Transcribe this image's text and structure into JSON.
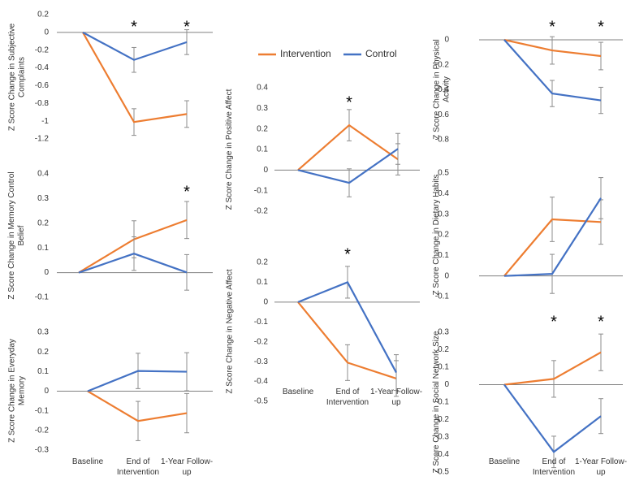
{
  "legend": [
    {
      "name": "Intervention",
      "color": "#ed7d31"
    },
    {
      "name": "Control",
      "color": "#4472c4"
    }
  ],
  "chart_data": [
    {
      "type": "line",
      "ylabel": "Z Score Change in Subjective Complaints",
      "categories": [
        null,
        null,
        null
      ],
      "series": [
        {
          "color": "#ed7d31",
          "values": [
            0,
            -1.01,
            -0.92
          ],
          "errors": [
            null,
            0.15,
            0.15
          ]
        },
        {
          "color": "#4472c4",
          "values": [
            0,
            -0.31,
            -0.11
          ],
          "errors": [
            null,
            0.14,
            0.14
          ]
        }
      ],
      "significant": [
        false,
        true,
        true
      ],
      "marker": "*",
      "ylim": [
        -1.2,
        0.2
      ],
      "yticks": [
        0.2,
        0,
        -0.2,
        -0.4,
        -0.6,
        -0.8,
        -1,
        -1.2
      ]
    },
    {
      "type": "line",
      "ylabel": "Z Score Change in Memory Control Belief",
      "categories": [
        null,
        null,
        null
      ],
      "series": [
        {
          "color": "#ed7d31",
          "values": [
            0,
            0.135,
            0.213
          ],
          "errors": [
            null,
            0.075,
            0.075
          ]
        },
        {
          "color": "#4472c4",
          "values": [
            0,
            0.077,
            0.001
          ],
          "errors": [
            null,
            0.068,
            0.072
          ]
        }
      ],
      "significant": [
        false,
        false,
        true
      ],
      "marker": "*",
      "ylim": [
        -0.1,
        0.4
      ],
      "yticks": [
        0.4,
        0.3,
        0.2,
        0.1,
        0,
        -0.1
      ]
    },
    {
      "type": "line",
      "ylabel": "Z Score Change in Everyday Memory",
      "categories": [
        "Baseline",
        "End of Intervention",
        "1-Year Follow-up"
      ],
      "series": [
        {
          "color": "#ed7d31",
          "values": [
            0,
            -0.152,
            -0.112
          ],
          "errors": [
            null,
            0.1,
            0.1
          ]
        },
        {
          "color": "#4472c4",
          "values": [
            0,
            0.103,
            0.099
          ],
          "errors": [
            null,
            0.09,
            0.097
          ]
        }
      ],
      "significant": [
        false,
        false,
        false
      ],
      "marker": "*",
      "ylim": [
        -0.3,
        0.3
      ],
      "yticks": [
        0.3,
        0.2,
        0.1,
        0,
        -0.1,
        -0.2,
        -0.3
      ]
    },
    {
      "type": "line",
      "ylabel": "Z Score Change in Positive Affect",
      "categories": [
        null,
        null,
        null
      ],
      "series": [
        {
          "color": "#ed7d31",
          "values": [
            0,
            0.218,
            0.052
          ],
          "errors": [
            null,
            0.076,
            0.076
          ]
        },
        {
          "color": "#4472c4",
          "values": [
            0,
            -0.062,
            0.103
          ],
          "errors": [
            null,
            0.068,
            0.075
          ]
        }
      ],
      "significant": [
        false,
        true,
        false
      ],
      "marker": "*",
      "ylim": [
        -0.2,
        0.4
      ],
      "yticks": [
        0.4,
        0.3,
        0.2,
        0.1,
        0,
        -0.1,
        -0.2
      ]
    },
    {
      "type": "line",
      "ylabel": "Z Score Change in Negative Affect",
      "categories": [
        "Baseline",
        "End of Intervention",
        "1-Year Follow-up"
      ],
      "series": [
        {
          "color": "#ed7d31",
          "values": [
            0,
            -0.305,
            -0.385
          ],
          "errors": [
            null,
            0.09,
            0.09
          ]
        },
        {
          "color": "#4472c4",
          "values": [
            0,
            0.1,
            -0.355
          ],
          "errors": [
            null,
            0.08,
            0.09
          ]
        }
      ],
      "significant": [
        false,
        true,
        false
      ],
      "marker": "*",
      "ylim": [
        -0.5,
        0.2
      ],
      "yticks": [
        0.2,
        0.1,
        0,
        -0.1,
        -0.2,
        -0.3,
        -0.4,
        -0.5
      ]
    },
    {
      "type": "line",
      "ylabel": "Z Score Change in Physical Activity",
      "categories": [
        null,
        null,
        null
      ],
      "series": [
        {
          "color": "#ed7d31",
          "values": [
            0,
            -0.085,
            -0.13
          ],
          "errors": [
            null,
            0.11,
            0.11
          ]
        },
        {
          "color": "#4472c4",
          "values": [
            0,
            -0.43,
            -0.485
          ],
          "errors": [
            null,
            0.105,
            0.105
          ]
        }
      ],
      "significant": [
        false,
        true,
        true
      ],
      "marker": "*",
      "ylim": [
        -0.8,
        0
      ],
      "yticks": [
        0,
        -0.2,
        -0.4,
        -0.6,
        -0.8
      ]
    },
    {
      "type": "line",
      "ylabel": "Z Score Change in Dietary Habits",
      "categories": [
        null,
        null,
        null
      ],
      "series": [
        {
          "color": "#ed7d31",
          "values": [
            0,
            0.275,
            0.262
          ],
          "errors": [
            null,
            0.108,
            0.108
          ]
        },
        {
          "color": "#4472c4",
          "values": [
            0,
            0.01,
            0.378
          ],
          "errors": [
            null,
            0.095,
            0.1
          ]
        }
      ],
      "significant": [
        false,
        false,
        false
      ],
      "marker": "*",
      "ylim": [
        -0.1,
        0.5
      ],
      "yticks": [
        0.5,
        0.4,
        0.3,
        0.2,
        0.1,
        0,
        -0.1
      ]
    },
    {
      "type": "line",
      "ylabel": "Z Score Change in Social Network Size",
      "categories": [
        "Baseline",
        "End of Intervention",
        "1-Year Follow-up"
      ],
      "series": [
        {
          "color": "#ed7d31",
          "values": [
            0,
            0.033,
            0.185
          ],
          "errors": [
            null,
            0.105,
            0.105
          ]
        },
        {
          "color": "#4472c4",
          "values": [
            0,
            -0.385,
            -0.18
          ],
          "errors": [
            null,
            0.09,
            0.1
          ]
        }
      ],
      "significant": [
        false,
        true,
        true
      ],
      "marker": "*",
      "ylim": [
        -0.5,
        0.3
      ],
      "yticks": [
        0.3,
        0.2,
        0.1,
        0,
        -0.1,
        -0.2,
        -0.3,
        -0.4,
        -0.5
      ]
    }
  ]
}
